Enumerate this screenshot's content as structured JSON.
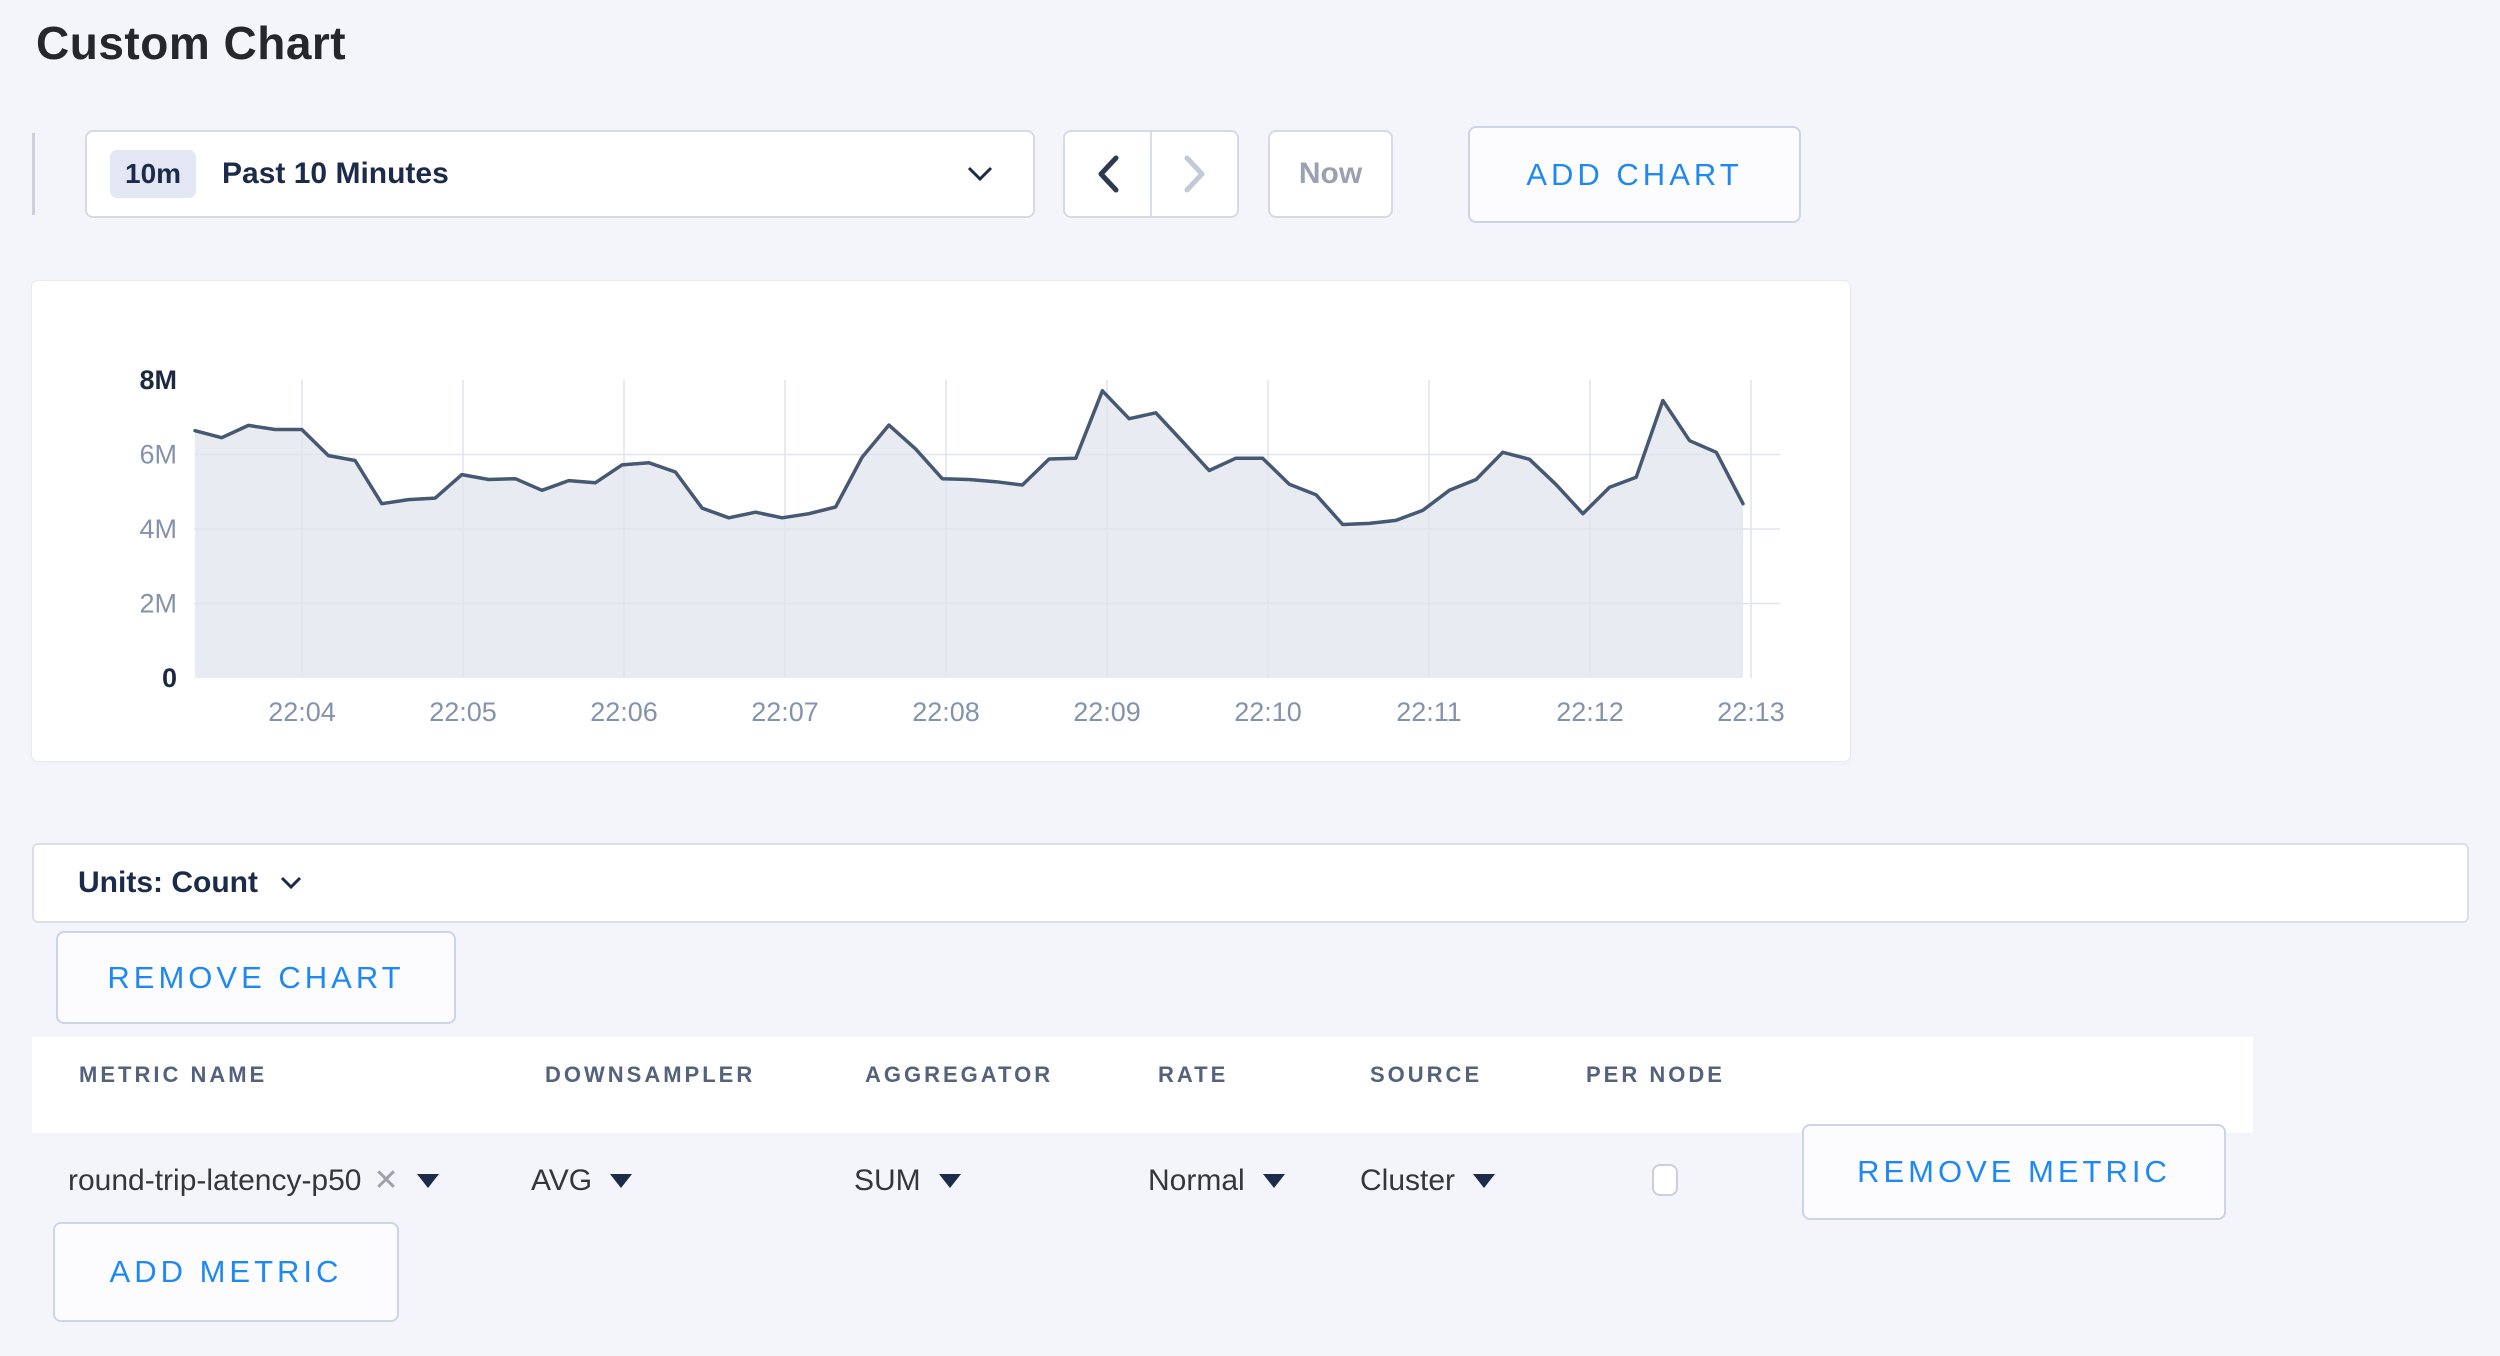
{
  "page": {
    "title": "Custom Chart"
  },
  "toolbar": {
    "range_badge": "10m",
    "range_label": "Past 10 Minutes",
    "now_label": "Now",
    "add_chart_label": "ADD CHART"
  },
  "chart_data": {
    "type": "area",
    "title": "",
    "xlabel": "",
    "ylabel": "",
    "unit": "count",
    "grid": true,
    "legend": "none",
    "ylim": [
      0,
      8000000
    ],
    "y_ticks": [
      {
        "label": "0",
        "value_millions": 0,
        "emphasis": true
      },
      {
        "label": "2M",
        "value_millions": 2,
        "emphasis": false
      },
      {
        "label": "4M",
        "value_millions": 4,
        "emphasis": false
      },
      {
        "label": "6M",
        "value_millions": 6,
        "emphasis": false
      },
      {
        "label": "8M",
        "value_millions": 8,
        "emphasis": true
      }
    ],
    "x_tick_labels": [
      "22:04",
      "22:05",
      "22:06",
      "22:07",
      "22:08",
      "22:09",
      "22:10",
      "22:11",
      "22:12",
      "22:13"
    ],
    "start_time": "22:03:20",
    "interval_seconds": 10,
    "line_color": "#475872",
    "fill_color": "#e9ebf2",
    "grid_color": "#e1e4ee",
    "series": [
      {
        "name": "round-trip-latency-p50",
        "values_millions": [
          6.64,
          6.45,
          6.78,
          6.67,
          6.67,
          5.97,
          5.84,
          4.68,
          4.79,
          4.83,
          5.46,
          5.33,
          5.35,
          5.04,
          5.3,
          5.24,
          5.72,
          5.78,
          5.53,
          4.56,
          4.3,
          4.45,
          4.3,
          4.41,
          4.59,
          5.93,
          6.79,
          6.15,
          5.35,
          5.33,
          5.27,
          5.18,
          5.88,
          5.9,
          7.71,
          6.96,
          7.12,
          6.35,
          5.57,
          5.9,
          5.9,
          5.2,
          4.92,
          4.12,
          4.15,
          4.23,
          4.5,
          5.04,
          5.33,
          6.06,
          5.87,
          5.19,
          4.41,
          5.12,
          5.39,
          7.45,
          6.37,
          6.06,
          4.68
        ]
      }
    ]
  },
  "units_bar": {
    "label": "Units: Count"
  },
  "chart_actions": {
    "remove_chart_label": "REMOVE CHART"
  },
  "metrics_table": {
    "headers": [
      "METRIC NAME",
      "DOWNSAMPLER",
      "AGGREGATOR",
      "RATE",
      "SOURCE",
      "PER NODE"
    ],
    "rows": [
      {
        "metric_name": "round-trip-latency-p50",
        "remove_tag_glyph": "✕",
        "downsampler": "AVG",
        "aggregator": "SUM",
        "rate": "Normal",
        "source": "Cluster",
        "per_node_checked": false,
        "remove_label": "REMOVE METRIC"
      }
    ],
    "add_metric_label": "ADD METRIC"
  },
  "colors": {
    "accent_blue": "#1e88f5",
    "navy_text": "#1c2b4a",
    "axis_text": "#8492ab",
    "page_bg": "#f4f5fa"
  }
}
